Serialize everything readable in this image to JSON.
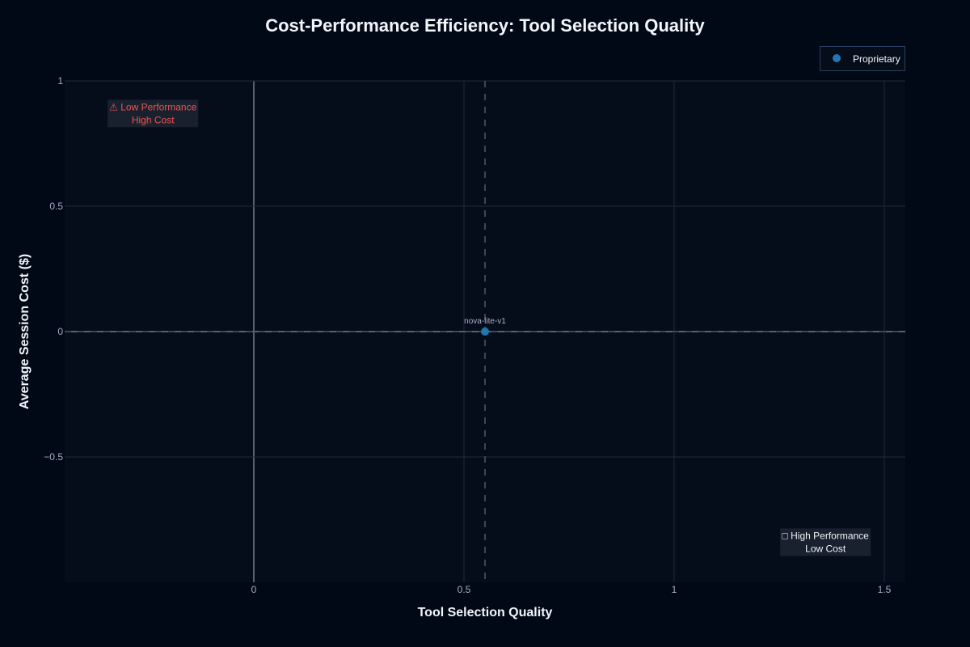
{
  "chart_data": {
    "type": "scatter",
    "title": "Cost-Performance Efficiency: Tool Selection Quality",
    "xlabel": "Tool Selection Quality",
    "ylabel": "Average Session Cost ($)",
    "xlim": [
      -0.45,
      1.55
    ],
    "ylim": [
      -1.0,
      1.0
    ],
    "x_ticks": [
      {
        "value": 0,
        "label": "0"
      },
      {
        "value": 0.5,
        "label": "0.5"
      },
      {
        "value": 1,
        "label": "1"
      },
      {
        "value": 1.5,
        "label": "1.5"
      }
    ],
    "y_ticks": [
      {
        "value": 1,
        "label": "1"
      },
      {
        "value": 0.5,
        "label": "0.5"
      },
      {
        "value": 0,
        "label": "0"
      },
      {
        "value": -0.5,
        "label": "−0.5"
      }
    ],
    "grid": true,
    "legend_position": "top-right",
    "series": [
      {
        "name": "Proprietary",
        "color": "#1f77b4",
        "points": [
          {
            "x": 0.55,
            "y": 0,
            "label": "nova-lite-v1"
          }
        ]
      }
    ],
    "reference_lines": {
      "x": 0.55,
      "y": 0
    },
    "annotations": [
      {
        "lines": [
          "⚠ Low Performance",
          "High Cost"
        ],
        "x": -0.24,
        "y": 0.87,
        "color": "#ef5350"
      },
      {
        "lines": [
          "□ High Performance",
          "Low Cost"
        ],
        "x": 1.36,
        "y": -0.84,
        "color": "#f2f5fa"
      }
    ],
    "colors": {
      "background": "#010816",
      "plot_background": "#060d1a",
      "grid": "#1f2a37",
      "zero_line": "#58606d",
      "reference": "#3c4654"
    }
  }
}
